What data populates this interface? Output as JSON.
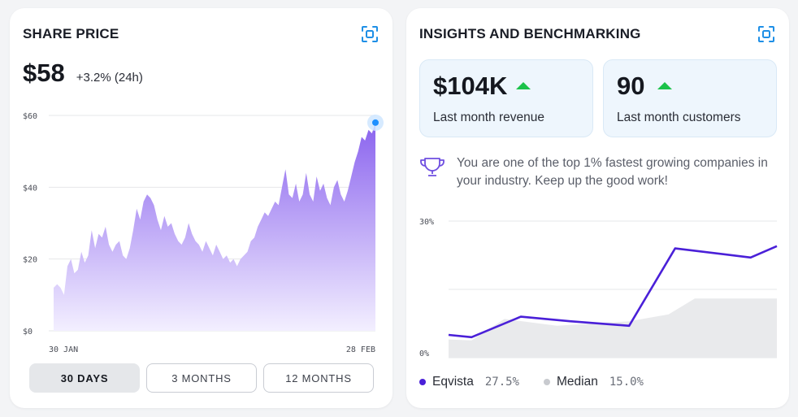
{
  "share_price": {
    "title": "SHARE PRICE",
    "price": "$58",
    "change": "+3.2% (24h)",
    "y_ticks": [
      "$60",
      "$40",
      "$20",
      "$0"
    ],
    "x_ticks": [
      "30 JAN",
      "28 FEB"
    ],
    "ranges": [
      "30 DAYS",
      "3 MONTHS",
      "12 MONTHS"
    ],
    "active_range": "30 DAYS",
    "fill_color_top": "#8a63ee",
    "fill_color_bottom": "#f3efff",
    "marker_color": "#1e90ff"
  },
  "insights": {
    "title": "INSIGHTS AND BENCHMARKING",
    "stats": [
      {
        "value": "$104K",
        "label": "Last month revenue",
        "trend": "up"
      },
      {
        "value": "90",
        "label": "Last month customers",
        "trend": "up"
      }
    ],
    "insight_icon": "trophy-icon",
    "insight_text": "You are one of the top 1% fastest growing companies in your industry. Keep up the good work!",
    "y_ticks": [
      "30%",
      "0%"
    ],
    "legend": [
      {
        "name": "Eqvista",
        "value": "27.5%",
        "color": "#4a20d8"
      },
      {
        "name": "Median",
        "value": "15.0%",
        "color": "#c8cacf"
      }
    ]
  },
  "chart_data": [
    {
      "type": "area",
      "title": "",
      "xlabel": "",
      "ylabel": "",
      "x_range": [
        "30 JAN",
        "28 FEB"
      ],
      "ylim": [
        0,
        60
      ],
      "grid": true,
      "values": [
        12,
        13,
        12,
        10,
        18,
        20,
        16,
        17,
        22,
        19,
        21,
        28,
        23,
        27,
        26,
        29,
        24,
        22,
        24,
        25,
        21,
        20,
        23,
        28,
        34,
        31,
        36,
        38,
        37,
        35,
        31,
        28,
        32,
        29,
        30,
        27,
        25,
        24,
        26,
        30,
        27,
        25,
        24,
        22,
        25,
        23,
        21,
        24,
        22,
        20,
        21,
        19,
        20,
        18,
        20,
        21,
        22,
        25,
        26,
        29,
        31,
        33,
        32,
        34,
        36,
        35,
        40,
        45,
        38,
        37,
        41,
        36,
        38,
        44,
        38,
        36,
        43,
        39,
        41,
        37,
        35,
        40,
        42,
        38,
        36,
        39,
        43,
        47,
        50,
        54,
        53,
        56,
        55,
        58
      ]
    },
    {
      "type": "area",
      "title": "",
      "xlabel": "",
      "ylabel": "",
      "ylim": [
        0,
        30
      ],
      "grid": true,
      "series": [
        {
          "name": "Eqvista",
          "values": [
            5.0,
            4.5,
            9.0,
            8.0,
            7.0,
            24.0,
            22.0,
            24.5
          ]
        },
        {
          "name": "Median",
          "values": [
            4.0,
            3.8,
            8.5,
            7.0,
            8.0,
            9.5,
            13.0,
            13.0
          ]
        }
      ]
    }
  ]
}
